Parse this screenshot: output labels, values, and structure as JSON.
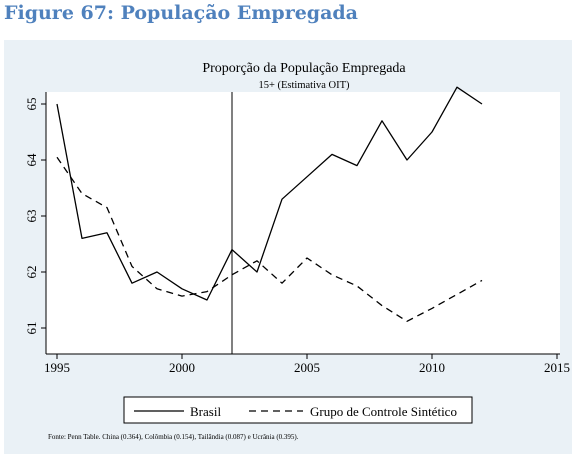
{
  "figure_title": "Figure 67: População Empregada",
  "source_note": "Fonte: Penn Table. China (0.364), Colômbia (0.154), Tailândia (0.087) e Ucrânia (0.395).",
  "chart_data": {
    "type": "line",
    "title": "Proporção da População Empregada",
    "subtitle": "15+ (Estimativa OIT)",
    "xlabel": "",
    "ylabel": "",
    "xlim": [
      1995,
      2015
    ],
    "ylim": [
      61,
      65
    ],
    "x_ticks": [
      1995,
      2000,
      2005,
      2010,
      2015
    ],
    "y_ticks": [
      61,
      62,
      63,
      64,
      65
    ],
    "vline_x": 2002,
    "grid": false,
    "legend_position": "bottom",
    "series": [
      {
        "name": "Brasil",
        "style": "solid",
        "color": "#000000",
        "x": [
          1995,
          1996,
          1997,
          1998,
          1999,
          2000,
          2001,
          2002,
          2003,
          2004,
          2005,
          2006,
          2007,
          2008,
          2009,
          2010,
          2011,
          2012
        ],
        "values": [
          65.0,
          62.6,
          62.7,
          61.8,
          62.0,
          61.7,
          61.5,
          62.4,
          62.0,
          63.3,
          63.7,
          64.1,
          63.9,
          64.7,
          64.0,
          64.5,
          65.3,
          65.0
        ]
      },
      {
        "name": "Grupo de Controle Sintético",
        "style": "dashed",
        "color": "#000000",
        "x": [
          1995,
          1996,
          1997,
          1998,
          1999,
          2000,
          2001,
          2002,
          2003,
          2004,
          2005,
          2006,
          2007,
          2008,
          2009,
          2010,
          2011,
          2012
        ],
        "values": [
          64.05,
          63.4,
          63.15,
          62.1,
          61.7,
          61.57,
          61.65,
          61.95,
          62.2,
          61.8,
          62.25,
          61.95,
          61.75,
          61.4,
          61.12,
          61.35,
          61.6,
          61.85
        ]
      }
    ]
  }
}
